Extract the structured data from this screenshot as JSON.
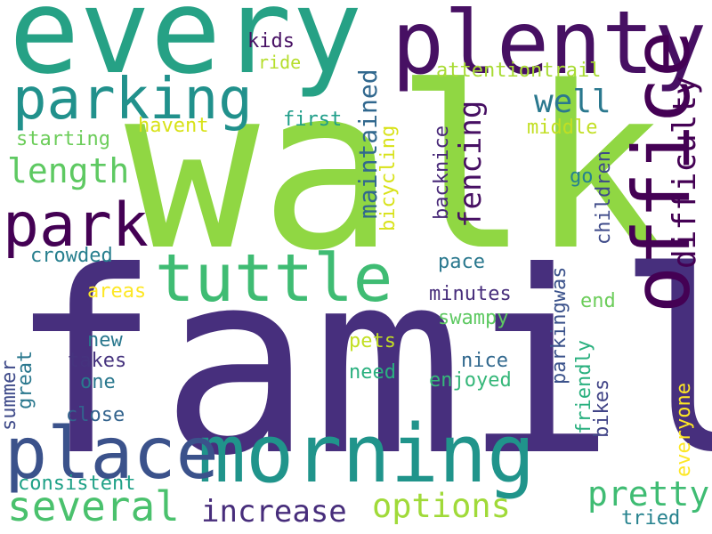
{
  "wordcloud": {
    "words": [
      {
        "text": "family",
        "color": "#472f7d"
      },
      {
        "text": "walk",
        "color": "#90d743"
      },
      {
        "text": "every",
        "color": "#26a185"
      },
      {
        "text": "plenty",
        "color": "#471063"
      },
      {
        "text": "parking",
        "color": "#21918c"
      },
      {
        "text": "office",
        "color": "#440154"
      },
      {
        "text": "morning",
        "color": "#20948b"
      },
      {
        "text": "place",
        "color": "#3b528b"
      },
      {
        "text": "tuttle",
        "color": "#3fbc73"
      },
      {
        "text": "park",
        "color": "#440154"
      },
      {
        "text": "several",
        "color": "#4ac16d"
      },
      {
        "text": "pretty",
        "color": "#3fbc73"
      },
      {
        "text": "increase",
        "color": "#472d7b"
      },
      {
        "text": "options",
        "color": "#a0da39"
      },
      {
        "text": "length",
        "color": "#5ec962"
      },
      {
        "text": "maintained",
        "color": "#31688e"
      },
      {
        "text": "fencing",
        "color": "#471063"
      },
      {
        "text": "well",
        "color": "#2a788e"
      },
      {
        "text": "difficulty",
        "color": "#440154"
      },
      {
        "text": "kids",
        "color": "#471063"
      },
      {
        "text": "ride",
        "color": "#b5de2b"
      },
      {
        "text": "attentiontrail",
        "color": "#a8db34"
      },
      {
        "text": "first",
        "color": "#1f9e89"
      },
      {
        "text": "havent",
        "color": "#d8e219"
      },
      {
        "text": "middle",
        "color": "#c2df23"
      },
      {
        "text": "starting",
        "color": "#6ccd5a"
      },
      {
        "text": "go",
        "color": "#26828e"
      },
      {
        "text": "crowded",
        "color": "#277f8e"
      },
      {
        "text": "pace",
        "color": "#2a788e"
      },
      {
        "text": "areas",
        "color": "#fde725"
      },
      {
        "text": "minutes",
        "color": "#472d7b"
      },
      {
        "text": "end",
        "color": "#6ccd5a"
      },
      {
        "text": "swampy",
        "color": "#5ec962"
      },
      {
        "text": "new",
        "color": "#2a788e"
      },
      {
        "text": "takes",
        "color": "#46337e"
      },
      {
        "text": "pets",
        "color": "#c2df23"
      },
      {
        "text": "nice",
        "color": "#31688e"
      },
      {
        "text": "need",
        "color": "#2ab07f"
      },
      {
        "text": "one",
        "color": "#2a788e"
      },
      {
        "text": "enjoyed",
        "color": "#35b779"
      },
      {
        "text": "close",
        "color": "#33638d"
      },
      {
        "text": "consistent",
        "color": "#1fa187"
      },
      {
        "text": "tried",
        "color": "#26828e"
      },
      {
        "text": "bicycling",
        "color": "#d8e219"
      },
      {
        "text": "backnice",
        "color": "#482878"
      },
      {
        "text": "children",
        "color": "#3e4a89"
      },
      {
        "text": "parkingwas",
        "color": "#3b528b"
      },
      {
        "text": "friendly",
        "color": "#2ab07f"
      },
      {
        "text": "bikes",
        "color": "#414487"
      },
      {
        "text": "everyone",
        "color": "#fde725"
      },
      {
        "text": "summer",
        "color": "#3e4a89"
      },
      {
        "text": "great",
        "color": "#2a788e"
      }
    ]
  }
}
